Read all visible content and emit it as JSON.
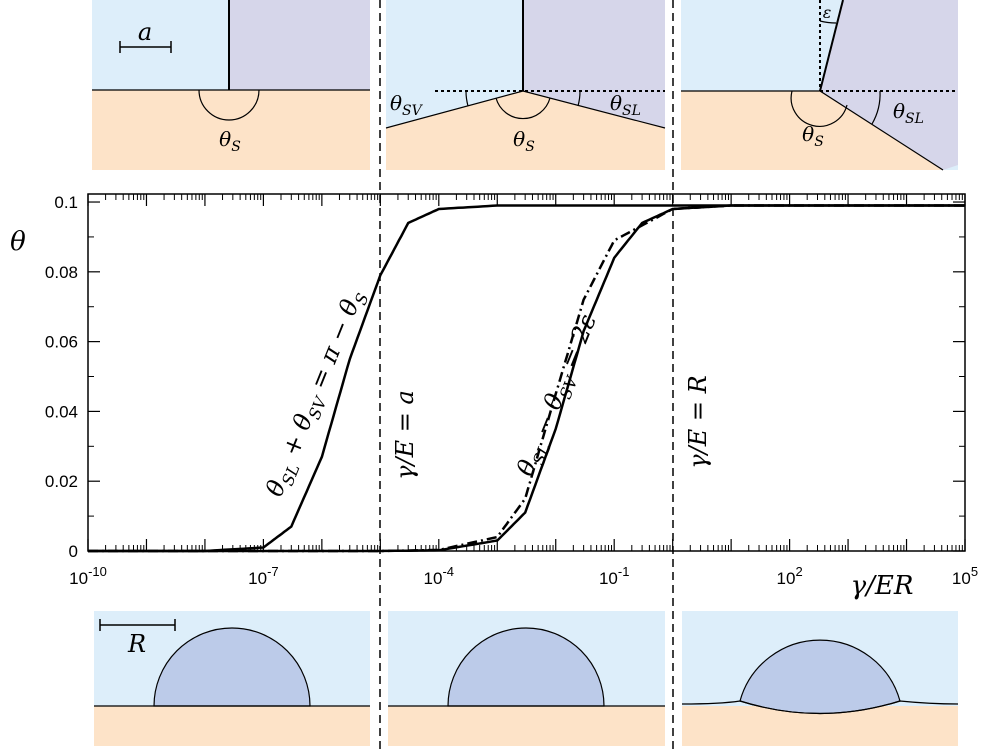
{
  "colors": {
    "liquid": "#ddeefa",
    "solid": "#fde3c8",
    "solid_region": "#d6d6ea",
    "drop": "#bccbe9",
    "line": "#000000"
  },
  "chart_data": {
    "type": "line",
    "xscale": "log",
    "xlim": [
      1e-10,
      100000.0
    ],
    "ylim": [
      0,
      0.1
    ],
    "ylabel": "θ",
    "xlabel": "γ/ER",
    "x_tick_labels": [
      "10-10",
      "10-7",
      "10-4",
      "10-1",
      "102",
      "105"
    ],
    "x_tick_values": [
      1e-10,
      1e-07,
      0.0001,
      0.1,
      100.0,
      100000.0
    ],
    "y_ticks": [
      "0",
      "0.02",
      "0.04",
      "0.06",
      "0.08",
      "0.1"
    ],
    "y_tick_values": [
      0,
      0.02,
      0.04,
      0.06,
      0.08,
      0.1
    ],
    "vlines": [
      {
        "x": 1e-05,
        "label": "γ/E = a",
        "style": "dashed"
      },
      {
        "x": 1,
        "label": "γ/E = R",
        "style": "dashed"
      }
    ],
    "series": [
      {
        "style": "solid",
        "label": "θSL + θSV = π − θS",
        "x": [
          1e-10,
          1e-08,
          1e-07,
          3e-07,
          1e-06,
          3e-06,
          1e-05,
          3e-05,
          0.0001,
          0.001,
          0.1,
          100000.0
        ],
        "y": [
          0.0,
          0.0,
          0.001,
          0.007,
          0.027,
          0.055,
          0.079,
          0.094,
          0.098,
          0.099,
          0.099,
          0.099
        ]
      },
      {
        "style": "dashdot",
        "label": "θSL − θSV = 2ε",
        "x": [
          1e-10,
          1e-05,
          0.0001,
          0.001,
          0.003,
          0.01,
          0.03,
          0.1,
          1,
          10,
          100000.0
        ],
        "y": [
          0.0,
          0.0,
          0.0003,
          0.004,
          0.015,
          0.045,
          0.072,
          0.089,
          0.098,
          0.099,
          0.099
        ]
      },
      {
        "style": "solid",
        "x": [
          1e-10,
          1e-05,
          0.0001,
          0.001,
          0.003,
          0.01,
          0.03,
          0.1,
          0.3,
          1,
          10,
          100000.0
        ],
        "y": [
          0.0,
          0.0,
          0.0002,
          0.003,
          0.011,
          0.035,
          0.063,
          0.084,
          0.094,
          0.098,
          0.099,
          0.099
        ]
      }
    ]
  },
  "top_panels": {
    "scale_label": "a",
    "theta_s": "θS",
    "theta_sv": "θSV",
    "theta_sl": "θSL",
    "epsilon": "ε"
  },
  "bottom_panels": {
    "scale_label": "R"
  }
}
